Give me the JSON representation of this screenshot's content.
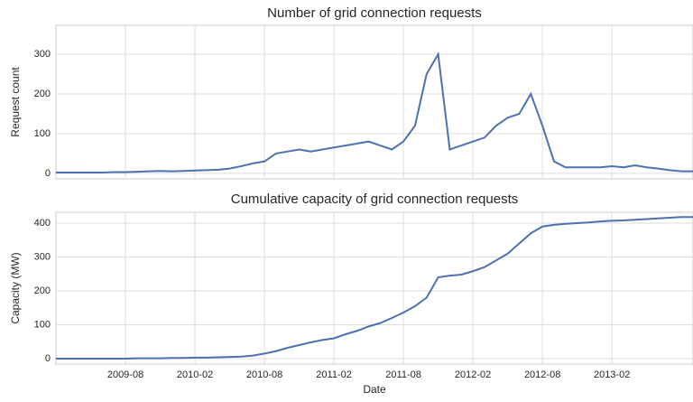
{
  "chart_data": [
    {
      "type": "line",
      "title": "Number of grid connection requests",
      "ylabel": "Request count",
      "color": "#4c72b0",
      "grid": true,
      "x": [
        "2009-02",
        "2009-03",
        "2009-04",
        "2009-05",
        "2009-06",
        "2009-07",
        "2009-08",
        "2009-09",
        "2009-10",
        "2009-11",
        "2009-12",
        "2010-01",
        "2010-02",
        "2010-03",
        "2010-04",
        "2010-05",
        "2010-06",
        "2010-07",
        "2010-08",
        "2010-09",
        "2010-10",
        "2010-11",
        "2010-12",
        "2011-01",
        "2011-02",
        "2011-03",
        "2011-04",
        "2011-05",
        "2011-06",
        "2011-07",
        "2011-08",
        "2011-09",
        "2011-10",
        "2011-11",
        "2011-12",
        "2012-01",
        "2012-02",
        "2012-03",
        "2012-04",
        "2012-05",
        "2012-06",
        "2012-07",
        "2012-08",
        "2012-09",
        "2012-10",
        "2012-11",
        "2012-12",
        "2013-01",
        "2013-02",
        "2013-03",
        "2013-04",
        "2013-05",
        "2013-06",
        "2013-07",
        "2013-08",
        "2013-09"
      ],
      "values": [
        2,
        2,
        2,
        2,
        2,
        3,
        3,
        4,
        5,
        6,
        5,
        6,
        7,
        8,
        9,
        12,
        18,
        25,
        30,
        50,
        55,
        60,
        55,
        60,
        65,
        70,
        75,
        80,
        70,
        60,
        80,
        120,
        250,
        300,
        60,
        70,
        80,
        90,
        120,
        140,
        150,
        200,
        120,
        30,
        15,
        15,
        15,
        15,
        18,
        15,
        20,
        15,
        12,
        8,
        5,
        5
      ],
      "xlim": [
        "2009-02",
        "2013-09"
      ],
      "ylim": [
        -14,
        373
      ],
      "yticks": [
        0,
        100,
        200,
        300
      ]
    },
    {
      "type": "line",
      "title": "Cumulative capacity of grid connection requests",
      "ylabel": "Capacity (MW)",
      "xlabel": "Date",
      "color": "#4c72b0",
      "grid": true,
      "x": [
        "2009-02",
        "2009-03",
        "2009-04",
        "2009-05",
        "2009-06",
        "2009-07",
        "2009-08",
        "2009-09",
        "2009-10",
        "2009-11",
        "2009-12",
        "2010-01",
        "2010-02",
        "2010-03",
        "2010-04",
        "2010-05",
        "2010-06",
        "2010-07",
        "2010-08",
        "2010-09",
        "2010-10",
        "2010-11",
        "2010-12",
        "2011-01",
        "2011-02",
        "2011-03",
        "2011-04",
        "2011-05",
        "2011-06",
        "2011-07",
        "2011-08",
        "2011-09",
        "2011-10",
        "2011-11",
        "2011-12",
        "2012-01",
        "2012-02",
        "2012-03",
        "2012-04",
        "2012-05",
        "2012-06",
        "2012-07",
        "2012-08",
        "2012-09",
        "2012-10",
        "2012-11",
        "2012-12",
        "2013-01",
        "2013-02",
        "2013-03",
        "2013-04",
        "2013-05",
        "2013-06",
        "2013-07",
        "2013-08",
        "2013-09"
      ],
      "values": [
        0,
        0,
        0,
        0,
        0,
        0,
        0,
        1,
        1,
        1,
        2,
        2,
        3,
        3,
        4,
        5,
        6,
        9,
        15,
        22,
        32,
        40,
        48,
        55,
        60,
        72,
        82,
        95,
        105,
        120,
        136,
        155,
        180,
        240,
        245,
        248,
        258,
        270,
        290,
        310,
        340,
        370,
        390,
        395,
        398,
        400,
        402,
        405,
        407,
        408,
        410,
        412,
        414,
        416,
        418,
        418
      ],
      "xlim": [
        "2009-02",
        "2013-09"
      ],
      "ylim": [
        -16,
        432
      ],
      "yticks": [
        0,
        100,
        200,
        300,
        400
      ],
      "xticks": [
        "2009-08",
        "2010-02",
        "2010-08",
        "2011-02",
        "2011-08",
        "2012-02",
        "2012-08",
        "2013-02"
      ]
    }
  ]
}
